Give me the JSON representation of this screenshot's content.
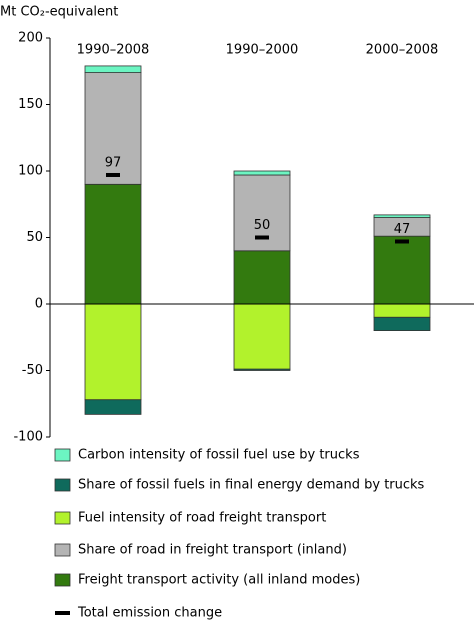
{
  "chart_data": {
    "type": "stacked-bar",
    "y_label": "Mt CO₂-equivalent",
    "categories": [
      "1990–2008",
      "1990–2000",
      "2000–2008"
    ],
    "series": [
      {
        "name": "Carbon intensity of fossil fuel use by trucks",
        "color": "#6cf5c2",
        "values": [
          5,
          3,
          2
        ]
      },
      {
        "name": "Share of fossil fuels in final energy demand by trucks",
        "color": "#0f6a5c",
        "values": [
          -11,
          -1,
          -10
        ]
      },
      {
        "name": "Fuel intensity of road freight transport",
        "color": "#b2f22c",
        "values": [
          -72,
          -49,
          -10
        ]
      },
      {
        "name": "Share of road in freight transport (inland)",
        "color": "#b4b4b4",
        "values": [
          84,
          57,
          14
        ]
      },
      {
        "name": "Freight transport activity (all inland modes)",
        "color": "#337a0f",
        "values": [
          90,
          40,
          51
        ]
      }
    ],
    "totals": {
      "name": "Total emission change",
      "color": "#000000",
      "values": [
        97,
        50,
        47
      ]
    },
    "ylim": [
      -100,
      200
    ],
    "yticks": [
      -100,
      -50,
      0,
      50,
      100,
      150,
      200
    ]
  }
}
